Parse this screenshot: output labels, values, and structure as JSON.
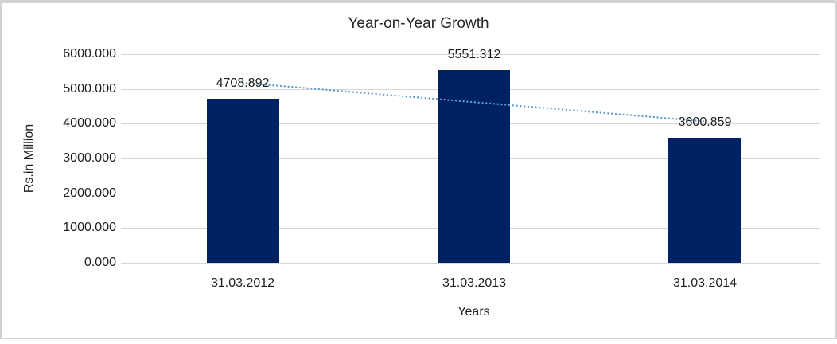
{
  "frame": {
    "border_color": "#d2d2d2",
    "background": "#ffffff"
  },
  "chart_data": {
    "type": "bar",
    "title": "Year-on-Year Growth",
    "xlabel": "Years",
    "ylabel": "Rs.in Million",
    "categories": [
      "31.03.2012",
      "31.03.2013",
      "31.03.2014"
    ],
    "values": [
      4708.892,
      5551.312,
      3600.859
    ],
    "data_labels": [
      "4708.892",
      "5551.312",
      "3600.859"
    ],
    "ylim": [
      0,
      6000
    ],
    "y_tick_step": 1000,
    "y_tick_labels": [
      "0.000",
      "1000.000",
      "2000.000",
      "3000.000",
      "4000.000",
      "5000.000",
      "6000.000"
    ],
    "grid": "horizontal-major",
    "legend": "none",
    "bar_color": "#002163",
    "grid_color": "#d6d6d6",
    "text_color": "#1f1f1f",
    "trendline": {
      "type": "linear",
      "style": "dotted",
      "color": "#5b9bd5",
      "endpoint_values": [
        5174.4,
        4066.3
      ]
    }
  }
}
